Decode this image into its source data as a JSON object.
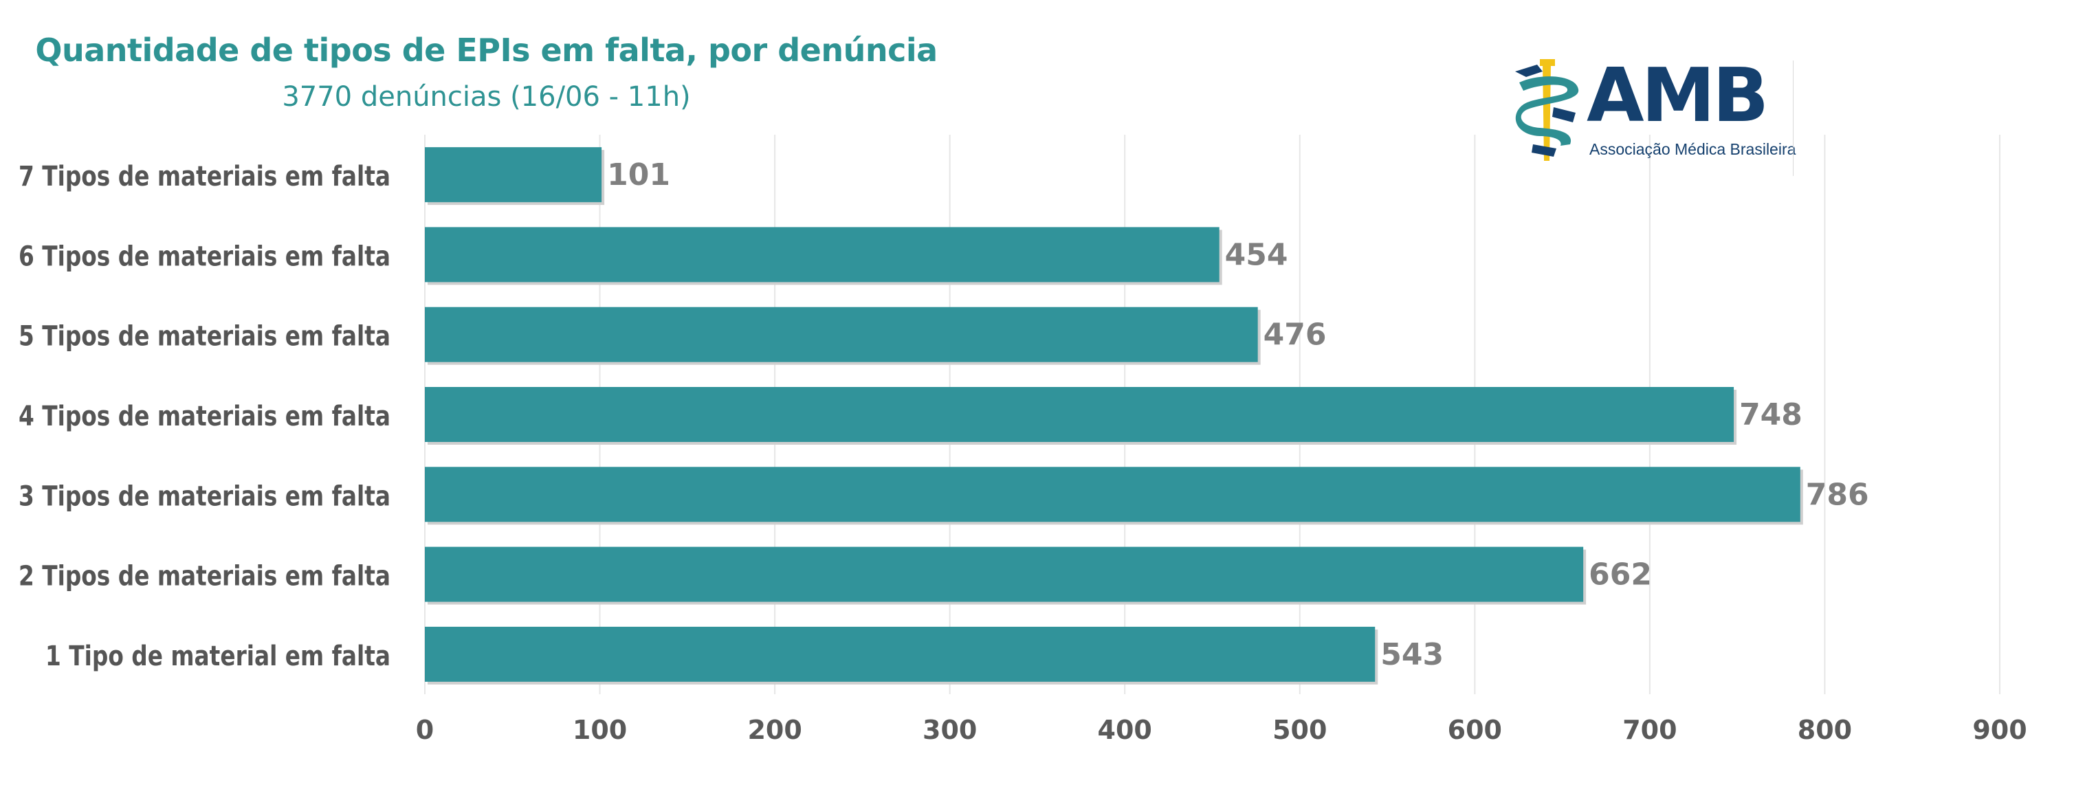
{
  "chart_data": {
    "type": "bar",
    "orientation": "horizontal",
    "title": "Quantidade de tipos de EPIs em falta, por denúncia",
    "subtitle": "3770 denúncias (16/06 - 11h)",
    "categories": [
      "7 Tipos de materiais em falta",
      "6 Tipos de materiais em falta",
      "5 Tipos de materiais em falta",
      "4 Tipos de materiais em falta",
      "3 Tipos de materiais em falta",
      "2 Tipos de materiais em falta",
      "1 Tipo de material em falta"
    ],
    "values": [
      101,
      454,
      476,
      748,
      786,
      662,
      543
    ],
    "data_labels": [
      "101",
      "454",
      "476",
      "748",
      "786",
      "662",
      "543"
    ],
    "xlim": [
      0,
      900
    ],
    "x_ticks": [
      0,
      100,
      200,
      300,
      400,
      500,
      600,
      700,
      800,
      900
    ],
    "x_tick_labels": [
      "0",
      "100",
      "200",
      "300",
      "400",
      "500",
      "600",
      "700",
      "800",
      "900"
    ],
    "grid": "vertical",
    "legend": "none",
    "colors": {
      "bar": "#31939a",
      "title": "#2e9393",
      "labels": "#555555",
      "value_labels": "#7f7f7f",
      "grid": "#e6e6e6"
    }
  },
  "logo": {
    "name": "AMB",
    "tagline": "Associação Médica Brasileira",
    "icon": "caduceus-icon",
    "colors": {
      "navy": "#15406e",
      "gold": "#f2c318",
      "teal": "#2e8f92"
    }
  }
}
